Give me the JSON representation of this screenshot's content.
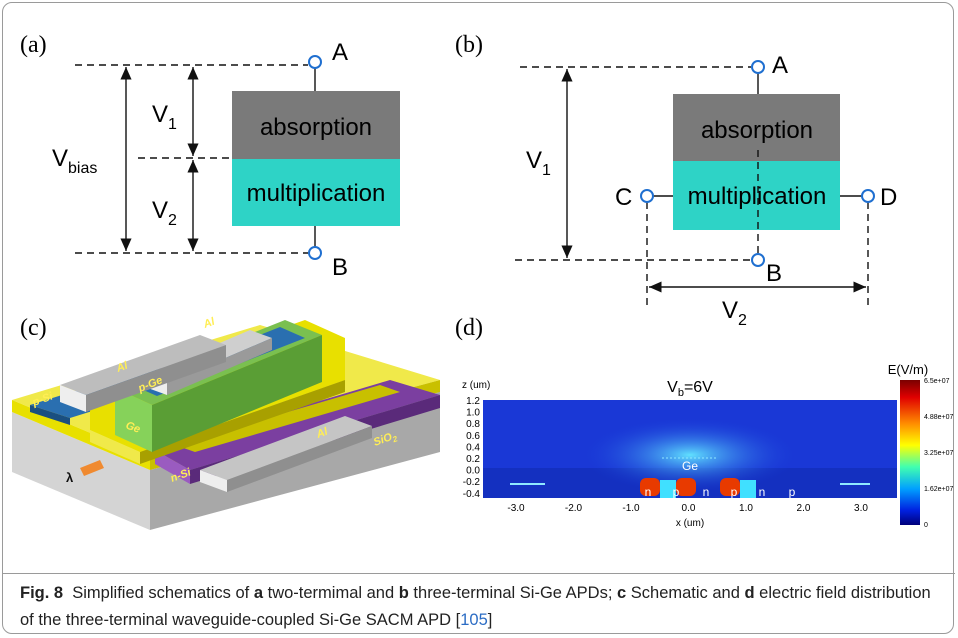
{
  "panel_a": {
    "label": "(a)",
    "top_layer": "absorption",
    "bottom_layer": "multiplication",
    "terminals": [
      "A",
      "B"
    ],
    "v1": {
      "main": "V",
      "sub": "1"
    },
    "v2": {
      "main": "V",
      "sub": "2"
    },
    "vbias": {
      "main": "V",
      "sub": "bias"
    }
  },
  "panel_b": {
    "label": "(b)",
    "top_layer": "absorption",
    "bottom_layer": "multiplication",
    "terminals": [
      "A",
      "B",
      "C",
      "D"
    ],
    "v1": {
      "main": "V",
      "sub": "1"
    },
    "v2": {
      "main": "V",
      "sub": "2"
    }
  },
  "panel_c": {
    "label": "(c)",
    "labels": [
      "Al",
      "Al",
      "p-Ge",
      "p-Si",
      "Ge",
      "Al",
      "n-Si",
      "λ"
    ],
    "sio2": {
      "main": "SiO",
      "sub": "2"
    }
  },
  "panel_d": {
    "label": "(d)",
    "title": {
      "main": "V",
      "sub": "b",
      "rest": "=6V"
    },
    "y_label": "z (um)",
    "x_label": "x (um)",
    "y_ticks": [
      "1.2",
      "1.0",
      "0.8",
      "0.6",
      "0.4",
      "0.2",
      "0.0",
      "-0.2",
      "-0.4"
    ],
    "x_ticks": [
      "-3.0",
      "-2.0",
      "-1.0",
      "0.0",
      "1.0",
      "2.0",
      "3.0"
    ],
    "colorbar_title": "E(V/m)",
    "colorbar_ticks": [
      "6.5e+07",
      "4.88e+07",
      "3.25e+07",
      "1.62e+07",
      "0"
    ],
    "material": "Ge",
    "regions": [
      "n",
      "p",
      "n",
      "p",
      "n",
      "p"
    ]
  },
  "caption": {
    "label": "Fig. 8",
    "t1": "Simplified schematics of ",
    "b1": "a",
    "t2": " two-termimal and ",
    "b2": "b",
    "t3": " three-terminal Si-Ge APDs; ",
    "b3": "c",
    "t4": " Schematic and ",
    "b4": "d",
    "t5": " electric field distribution of the three-terminal waveguide-coupled Si-Ge SACM APD [",
    "ref": "105",
    "t6": "]"
  }
}
